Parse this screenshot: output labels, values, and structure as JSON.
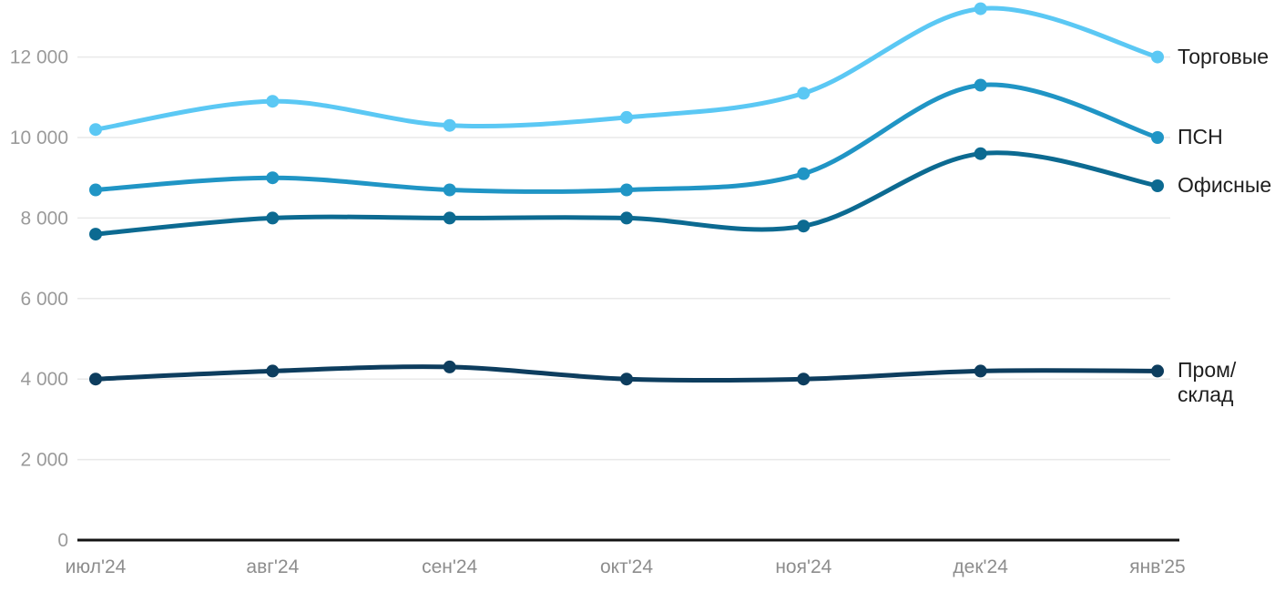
{
  "chart_data": {
    "type": "line",
    "title": "",
    "x_categories": [
      "июл'24",
      "авг'24",
      "сен'24",
      "окт'24",
      "ноя'24",
      "дек'24",
      "янв'25"
    ],
    "y_axis": {
      "tick_labels": [
        "0",
        "2 000",
        "4 000",
        "6 000",
        "8 000",
        "10 000",
        "12 000"
      ],
      "tick_values": [
        0,
        2000,
        4000,
        6000,
        8000,
        10000,
        12000
      ],
      "range": [
        0,
        13500
      ],
      "grid": true
    },
    "legend_position": "right-of-line-ends",
    "series": [
      {
        "name": "Торговые",
        "label": "Торговые",
        "color": "#5BC8F4",
        "values": [
          10200,
          10900,
          10300,
          10500,
          11100,
          13200,
          12000
        ]
      },
      {
        "name": "ПСН",
        "label": "ПСН",
        "color": "#2095C5",
        "values": [
          8700,
          9000,
          8700,
          8700,
          9100,
          11300,
          10000
        ]
      },
      {
        "name": "Офисные",
        "label": "Офисные",
        "color": "#0C6A91",
        "values": [
          7600,
          8000,
          8000,
          8000,
          7800,
          9600,
          8800
        ]
      },
      {
        "name": "Пром/склад",
        "label": "Пром/\nсклад",
        "color": "#0D3D5E",
        "values": [
          4000,
          4200,
          4300,
          4000,
          4000,
          4200,
          4200
        ]
      }
    ]
  },
  "colors": {
    "grid_line": "#e9e9e9",
    "axis_line": "#141414",
    "y_tick_label": "#9a9a9a",
    "x_tick_label": "#8d8d8d",
    "series_label_text": "#1e1e1e",
    "background": "#ffffff"
  }
}
